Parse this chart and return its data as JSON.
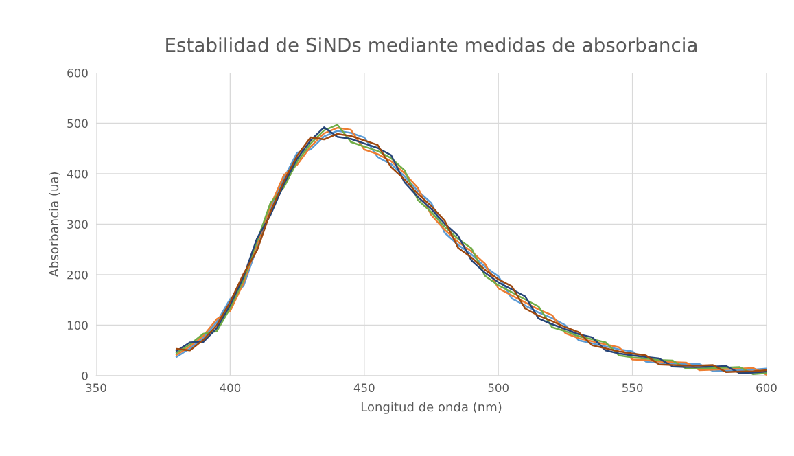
{
  "chart_data": {
    "type": "line",
    "title": "Estabilidad de SiNDs mediante medidas de absorbancia",
    "xlabel": "Longitud de onda (nm)",
    "ylabel": "Absorbancia (ua)",
    "x": [
      380,
      385,
      390,
      395,
      400,
      405,
      410,
      415,
      420,
      425,
      430,
      435,
      440,
      445,
      450,
      455,
      460,
      465,
      470,
      475,
      480,
      485,
      490,
      495,
      500,
      505,
      510,
      515,
      520,
      525,
      530,
      535,
      540,
      545,
      550,
      555,
      560,
      565,
      570,
      575,
      580,
      585,
      590,
      595,
      600
    ],
    "series": [
      {
        "color": "#5b9bd5",
        "values": [
          37,
          54,
          75,
          106,
          152,
          178,
          254,
          330,
          391,
          442,
          448,
          474,
          485,
          481,
          472,
          433,
          419,
          395,
          366,
          342,
          283,
          259,
          240,
          216,
          197,
          153,
          139,
          125,
          114,
          100,
          70,
          64,
          58,
          52,
          48,
          28,
          25,
          24,
          23,
          23,
          9,
          10,
          11,
          12,
          14
        ]
      },
      {
        "color": "#ed7d31",
        "values": [
          41,
          58,
          79,
          112,
          128,
          184,
          260,
          336,
          397,
          418,
          454,
          480,
          491,
          487,
          448,
          439,
          425,
          401,
          372,
          318,
          289,
          265,
          246,
          222,
          173,
          159,
          145,
          131,
          120,
          84,
          74,
          68,
          62,
          56,
          32,
          31,
          28,
          27,
          26,
          11,
          12,
          13,
          14,
          15,
          2
        ]
      },
      {
        "color": "#70ad47",
        "values": [
          45,
          62,
          83,
          88,
          134,
          190,
          266,
          342,
          373,
          424,
          460,
          486,
          497,
          463,
          454,
          445,
          431,
          407,
          348,
          324,
          295,
          271,
          252,
          198,
          179,
          165,
          151,
          137,
          96,
          88,
          78,
          72,
          66,
          40,
          36,
          34,
          31,
          30,
          14,
          14,
          15,
          16,
          17,
          3,
          5
        ]
      },
      {
        "color": "#264478",
        "values": [
          49,
          66,
          67,
          94,
          140,
          196,
          272,
          318,
          379,
          430,
          466,
          492,
          473,
          469,
          460,
          451,
          437,
          383,
          354,
          330,
          301,
          277,
          228,
          204,
          185,
          171,
          157,
          113,
          102,
          92,
          82,
          76,
          50,
          44,
          40,
          37,
          34,
          18,
          17,
          17,
          18,
          19,
          5,
          6,
          8
        ]
      },
      {
        "color": "#9e480e",
        "values": [
          53,
          50,
          71,
          100,
          146,
          202,
          248,
          324,
          385,
          436,
          472,
          468,
          479,
          475,
          466,
          457,
          413,
          389,
          360,
          336,
          307,
          253,
          234,
          210,
          191,
          177,
          133,
          119,
          108,
          96,
          86,
          60,
          54,
          48,
          44,
          40,
          22,
          21,
          20,
          20,
          21,
          7,
          8,
          9,
          11
        ]
      }
    ],
    "xlim": [
      350,
      600
    ],
    "xticks": [
      350,
      400,
      450,
      500,
      550,
      600
    ],
    "ylim": [
      0,
      600
    ],
    "yticks": [
      0,
      100,
      200,
      300,
      400,
      500,
      600
    ],
    "grid": true,
    "marker": "none",
    "line_style": "solid"
  }
}
